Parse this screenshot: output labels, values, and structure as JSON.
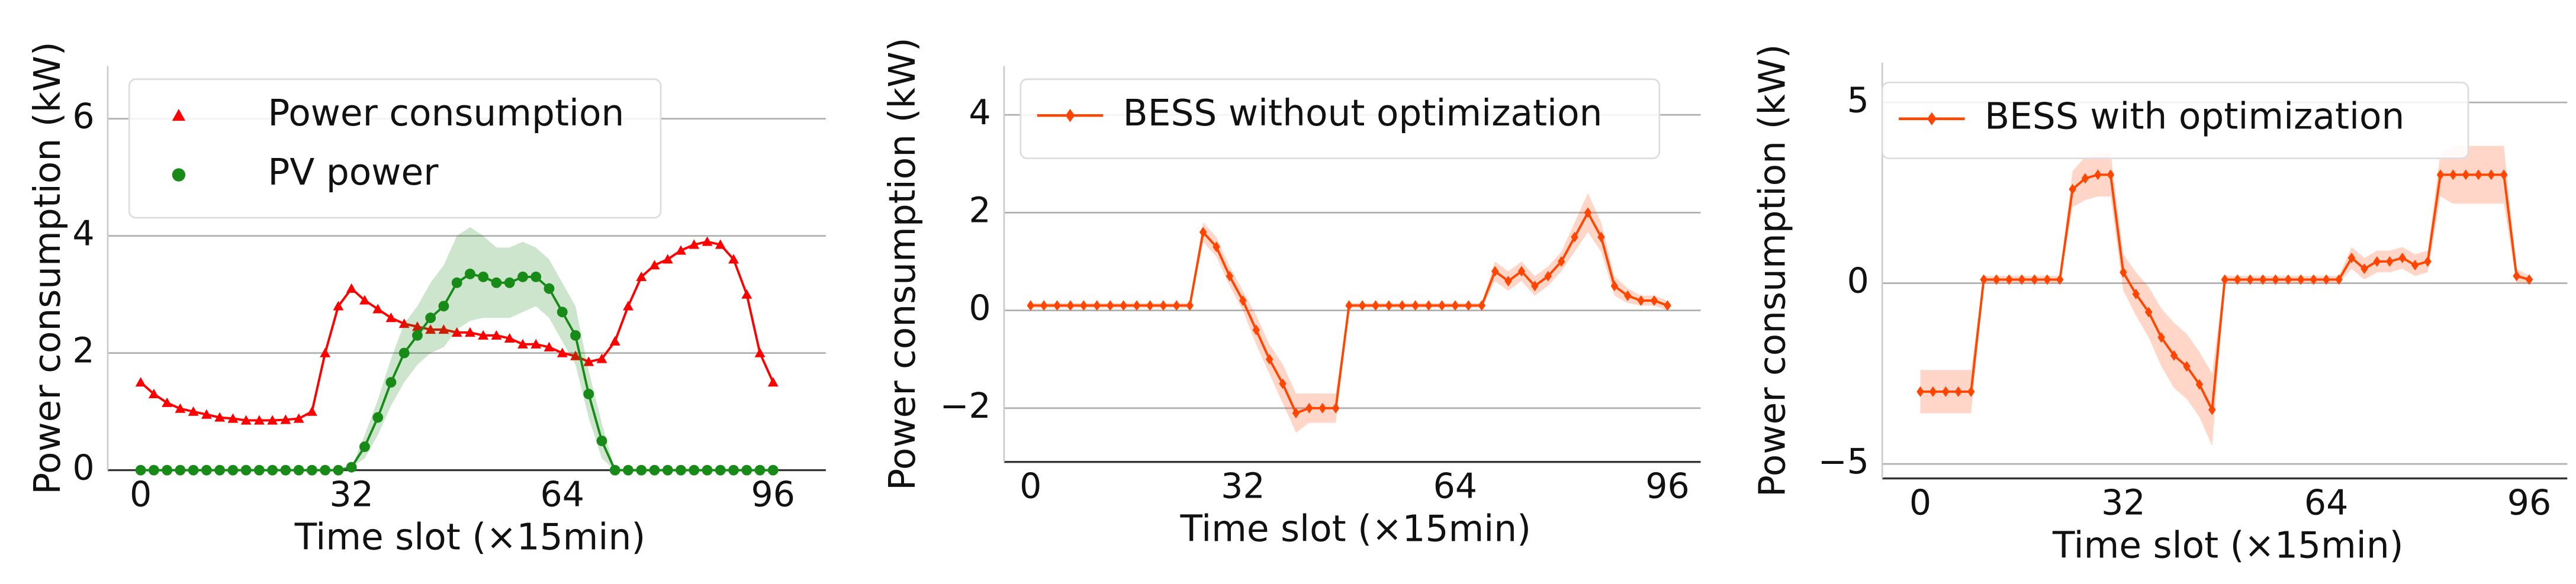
{
  "chart_data": [
    {
      "type": "line",
      "x_label": "Time slot (×15min)",
      "y_label": "Power consumption (kW)",
      "xlim": [
        -5,
        104
      ],
      "ylim": [
        0,
        6.9
      ],
      "xticks": [
        0,
        32,
        64,
        96
      ],
      "yticks": [
        0,
        2,
        4,
        6
      ],
      "grid": true,
      "legend": "upper left",
      "legend_line": false,
      "x": [
        0,
        2,
        4,
        6,
        8,
        10,
        12,
        14,
        16,
        18,
        20,
        22,
        24,
        26,
        28,
        30,
        32,
        34,
        36,
        38,
        40,
        42,
        44,
        46,
        48,
        50,
        52,
        54,
        56,
        58,
        60,
        62,
        64,
        66,
        68,
        70,
        72,
        74,
        76,
        78,
        80,
        82,
        84,
        86,
        88,
        90,
        92,
        94,
        96
      ],
      "series": [
        {
          "name": "Power consumption",
          "color": "#ff0000",
          "marker": "triangle",
          "values": [
            1.5,
            1.3,
            1.15,
            1.05,
            1.0,
            0.95,
            0.9,
            0.88,
            0.85,
            0.85,
            0.85,
            0.86,
            0.88,
            1.0,
            2.0,
            2.8,
            3.1,
            2.9,
            2.75,
            2.6,
            2.5,
            2.45,
            2.4,
            2.4,
            2.35,
            2.35,
            2.3,
            2.3,
            2.25,
            2.15,
            2.15,
            2.1,
            2.0,
            1.95,
            1.85,
            1.9,
            2.2,
            2.8,
            3.3,
            3.5,
            3.6,
            3.75,
            3.85,
            3.9,
            3.85,
            3.6,
            3.0,
            2.0,
            1.5
          ]
        },
        {
          "name": "PV power",
          "color": "#178a17",
          "marker": "circle",
          "values": [
            0,
            0,
            0,
            0,
            0,
            0,
            0,
            0,
            0,
            0,
            0,
            0,
            0,
            0,
            0,
            0,
            0.05,
            0.4,
            0.9,
            1.5,
            2.0,
            2.3,
            2.6,
            2.8,
            3.2,
            3.35,
            3.3,
            3.2,
            3.2,
            3.3,
            3.3,
            3.1,
            2.7,
            2.3,
            1.3,
            0.5,
            0,
            0,
            0,
            0,
            0,
            0,
            0,
            0,
            0,
            0,
            0,
            0,
            0
          ],
          "upper": [
            0,
            0,
            0,
            0,
            0,
            0,
            0,
            0,
            0,
            0,
            0,
            0,
            0,
            0,
            0,
            0,
            0.05,
            0.6,
            1.2,
            1.9,
            2.5,
            2.8,
            3.2,
            3.5,
            4.0,
            4.15,
            4.0,
            3.8,
            3.8,
            3.9,
            3.8,
            3.6,
            3.2,
            2.8,
            1.7,
            0.8,
            0,
            0,
            0,
            0,
            0,
            0,
            0,
            0,
            0,
            0,
            0,
            0,
            0
          ],
          "lower": [
            0,
            0,
            0,
            0,
            0,
            0,
            0,
            0,
            0,
            0,
            0,
            0,
            0,
            0,
            0,
            0,
            0.05,
            0.2,
            0.6,
            1.1,
            1.5,
            1.8,
            2.0,
            2.1,
            2.4,
            2.55,
            2.6,
            2.6,
            2.6,
            2.7,
            2.8,
            2.6,
            2.2,
            1.8,
            0.9,
            0.2,
            0,
            0,
            0,
            0,
            0,
            0,
            0,
            0,
            0,
            0,
            0,
            0,
            0
          ]
        }
      ]
    },
    {
      "type": "line",
      "x_label": "Time slot (×15min)",
      "y_label": "Power consumption (kW)",
      "xlim": [
        -4,
        101
      ],
      "ylim": [
        -3.1,
        5
      ],
      "xticks": [
        0,
        32,
        64,
        96
      ],
      "yticks": [
        {
          "value": -2,
          "label": "−2"
        },
        0,
        2,
        4
      ],
      "grid": true,
      "legend": "upper left",
      "legend_line": true,
      "x": [
        0,
        2,
        4,
        6,
        8,
        10,
        12,
        14,
        16,
        18,
        20,
        22,
        24,
        26,
        28,
        30,
        32,
        34,
        36,
        38,
        40,
        42,
        44,
        46,
        48,
        50,
        52,
        54,
        56,
        58,
        60,
        62,
        64,
        66,
        68,
        70,
        72,
        74,
        76,
        78,
        80,
        82,
        84,
        86,
        88,
        90,
        92,
        94,
        96
      ],
      "series": [
        {
          "name": "BESS without optimization",
          "color": "#ff4500",
          "marker": "diamond",
          "values": [
            0.1,
            0.1,
            0.1,
            0.1,
            0.1,
            0.1,
            0.1,
            0.1,
            0.1,
            0.1,
            0.1,
            0.1,
            0.1,
            1.6,
            1.3,
            0.7,
            0.2,
            -0.4,
            -1.0,
            -1.5,
            -2.1,
            -2.0,
            -2.0,
            -2.0,
            0.1,
            0.1,
            0.1,
            0.1,
            0.1,
            0.1,
            0.1,
            0.1,
            0.1,
            0.1,
            0.1,
            0.8,
            0.6,
            0.8,
            0.5,
            0.7,
            1.0,
            1.5,
            2.0,
            1.5,
            0.5,
            0.3,
            0.2,
            0.2,
            0.1
          ],
          "upper": [
            0.15,
            0.15,
            0.15,
            0.15,
            0.15,
            0.15,
            0.15,
            0.15,
            0.15,
            0.15,
            0.15,
            0.15,
            0.15,
            1.8,
            1.5,
            0.9,
            0.4,
            -0.1,
            -0.7,
            -1.1,
            -1.7,
            -1.7,
            -1.7,
            -1.7,
            0.15,
            0.15,
            0.15,
            0.15,
            0.15,
            0.15,
            0.15,
            0.15,
            0.15,
            0.15,
            0.15,
            1.0,
            0.8,
            1.0,
            0.7,
            0.9,
            1.2,
            1.8,
            2.4,
            1.8,
            0.7,
            0.45,
            0.3,
            0.3,
            0.2
          ],
          "lower": [
            0.05,
            0.05,
            0.05,
            0.05,
            0.05,
            0.05,
            0.05,
            0.05,
            0.05,
            0.05,
            0.05,
            0.05,
            0.05,
            1.4,
            1.1,
            0.5,
            0.0,
            -0.7,
            -1.3,
            -1.9,
            -2.5,
            -2.3,
            -2.3,
            -2.3,
            0.05,
            0.05,
            0.05,
            0.05,
            0.05,
            0.05,
            0.05,
            0.05,
            0.05,
            0.05,
            0.05,
            0.6,
            0.4,
            0.6,
            0.3,
            0.5,
            0.8,
            1.2,
            1.6,
            1.2,
            0.3,
            0.15,
            0.1,
            0.1,
            0.0
          ]
        }
      ]
    },
    {
      "type": "line",
      "x_label": "Time slot (×15min)",
      "y_label": "Power consumption (kW)",
      "xlim": [
        -6,
        102
      ],
      "ylim": [
        -5.4,
        6.1
      ],
      "xticks": [
        0,
        32,
        64,
        96
      ],
      "yticks": [
        {
          "value": -5,
          "label": "−5"
        },
        0,
        5
      ],
      "grid": true,
      "legend": "upper left",
      "legend_line": true,
      "x": [
        0,
        2,
        4,
        6,
        8,
        10,
        12,
        14,
        16,
        18,
        20,
        22,
        24,
        26,
        28,
        30,
        32,
        34,
        36,
        38,
        40,
        42,
        44,
        46,
        48,
        50,
        52,
        54,
        56,
        58,
        60,
        62,
        64,
        66,
        68,
        70,
        72,
        74,
        76,
        78,
        80,
        82,
        84,
        86,
        88,
        90,
        92,
        94,
        96
      ],
      "series": [
        {
          "name": "BESS with optimization",
          "color": "#ff4500",
          "marker": "diamond",
          "values": [
            -3,
            -3,
            -3,
            -3,
            -3,
            0.1,
            0.1,
            0.1,
            0.1,
            0.1,
            0.1,
            0.1,
            2.6,
            2.9,
            3.0,
            3.0,
            0.3,
            -0.3,
            -0.8,
            -1.5,
            -2.0,
            -2.3,
            -2.8,
            -3.5,
            0.1,
            0.1,
            0.1,
            0.1,
            0.1,
            0.1,
            0.1,
            0.1,
            0.1,
            0.1,
            0.7,
            0.4,
            0.6,
            0.6,
            0.7,
            0.5,
            0.6,
            3.0,
            3.0,
            3.0,
            3.0,
            3.0,
            3.0,
            0.2,
            0.1
          ],
          "upper": [
            -2.4,
            -2.4,
            -2.4,
            -2.4,
            -2.4,
            0.2,
            0.2,
            0.2,
            0.2,
            0.2,
            0.2,
            0.2,
            3.1,
            3.5,
            3.6,
            3.6,
            0.8,
            0.3,
            -0.1,
            -0.7,
            -1.1,
            -1.4,
            -1.9,
            -2.5,
            0.2,
            0.2,
            0.2,
            0.2,
            0.2,
            0.2,
            0.2,
            0.2,
            0.2,
            0.2,
            1.0,
            0.7,
            0.9,
            0.9,
            1.0,
            0.8,
            0.9,
            3.6,
            3.8,
            3.8,
            3.8,
            3.8,
            3.8,
            0.4,
            0.2
          ],
          "lower": [
            -3.6,
            -3.6,
            -3.6,
            -3.6,
            -3.6,
            0.0,
            0.0,
            0.0,
            0.0,
            0.0,
            0.0,
            0.0,
            2.1,
            2.3,
            2.4,
            2.4,
            -0.2,
            -0.9,
            -1.5,
            -2.3,
            -2.9,
            -3.2,
            -3.7,
            -4.5,
            0.0,
            0.0,
            0.0,
            0.0,
            0.0,
            0.0,
            0.0,
            0.0,
            0.0,
            0.0,
            0.4,
            0.1,
            0.3,
            0.3,
            0.4,
            0.2,
            0.3,
            2.4,
            2.2,
            2.2,
            2.2,
            2.2,
            2.2,
            0.0,
            0.0
          ]
        }
      ]
    }
  ]
}
